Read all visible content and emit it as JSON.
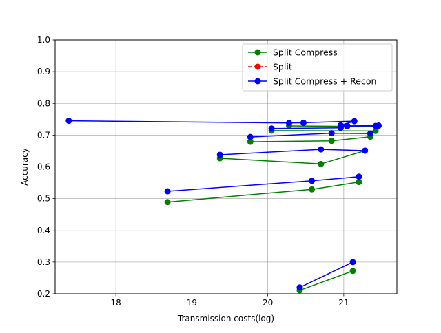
{
  "chart_data": {
    "type": "line",
    "xlabel": "Transmission costs(log)",
    "ylabel": "Accuracy",
    "xlim": [
      17.2,
      21.7
    ],
    "ylim": [
      0.2,
      1.0
    ],
    "xticks": [
      {
        "value": 18,
        "label": "18"
      },
      {
        "value": 19,
        "label": "19"
      },
      {
        "value": 20,
        "label": "20"
      },
      {
        "value": 21,
        "label": "21"
      }
    ],
    "yticks": [
      {
        "value": 0.2,
        "label": "0.2"
      },
      {
        "value": 0.3,
        "label": "0.3"
      },
      {
        "value": 0.4,
        "label": "0.4"
      },
      {
        "value": 0.5,
        "label": "0.5"
      },
      {
        "value": 0.6,
        "label": "0.6"
      },
      {
        "value": 0.7,
        "label": "0.7"
      },
      {
        "value": 0.8,
        "label": "0.8"
      },
      {
        "value": 0.9,
        "label": "0.9"
      },
      {
        "value": 1.0,
        "label": "1.0"
      }
    ],
    "grid": true,
    "legend_position": "top-right",
    "series": [
      {
        "name": "Split Compress",
        "color": "#008000",
        "line_style": "solid",
        "marker": "circle",
        "segments": [
          [
            [
              20.42,
              0.211
            ],
            [
              21.12,
              0.272
            ]
          ],
          [
            [
              18.68,
              0.489
            ],
            [
              20.58,
              0.529
            ],
            [
              21.2,
              0.552
            ]
          ],
          [
            [
              19.37,
              0.627
            ],
            [
              20.7,
              0.609
            ],
            [
              21.28,
              0.651
            ]
          ],
          [
            [
              19.77,
              0.679
            ],
            [
              20.84,
              0.682
            ],
            [
              21.35,
              0.695
            ]
          ],
          [
            [
              20.05,
              0.714
            ],
            [
              21.42,
              0.713
            ]
          ],
          [
            [
              20.28,
              0.729
            ],
            [
              21.45,
              0.727
            ]
          ]
        ]
      },
      {
        "name": "Split",
        "color": "#ff0000",
        "line_style": "dashed",
        "marker": "circle",
        "segments": []
      },
      {
        "name": "Split Compress + Recon",
        "color": "#0000ff",
        "line_style": "solid",
        "marker": "circle",
        "segments": [
          [
            [
              20.42,
              0.22
            ],
            [
              21.12,
              0.3
            ]
          ],
          [
            [
              18.68,
              0.523
            ],
            [
              20.58,
              0.556
            ],
            [
              21.2,
              0.569
            ]
          ],
          [
            [
              19.37,
              0.638
            ],
            [
              20.7,
              0.655
            ],
            [
              21.28,
              0.651
            ]
          ],
          [
            [
              19.77,
              0.694
            ],
            [
              20.84,
              0.706
            ],
            [
              21.35,
              0.705
            ]
          ],
          [
            [
              20.05,
              0.721
            ],
            [
              20.96,
              0.723
            ],
            [
              21.04,
              0.729
            ],
            [
              21.42,
              0.729
            ]
          ],
          [
            [
              17.38,
              0.745
            ],
            [
              20.28,
              0.738
            ],
            [
              20.47,
              0.739
            ],
            [
              21.14,
              0.744
            ],
            [
              20.96,
              0.731
            ],
            [
              21.05,
              0.729
            ],
            [
              21.46,
              0.73
            ]
          ]
        ]
      }
    ]
  }
}
